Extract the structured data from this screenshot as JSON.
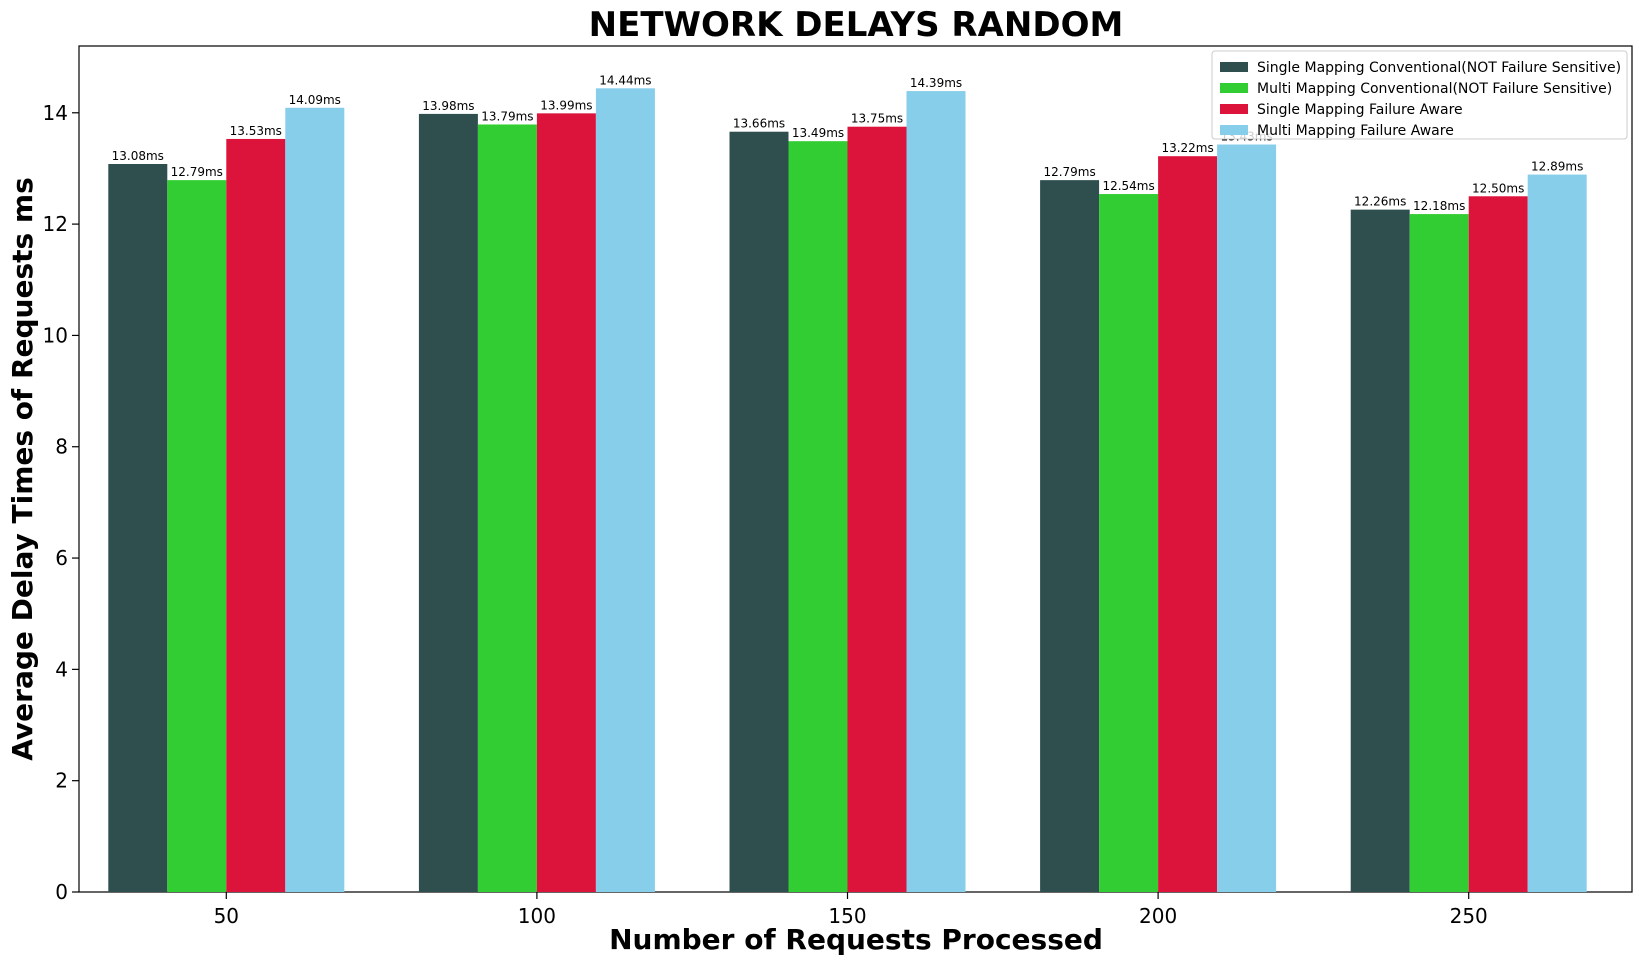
{
  "chart_data": {
    "type": "bar",
    "title": "NETWORK DELAYS RANDOM",
    "xlabel": "Number of Requests Processed",
    "ylabel": "Average Delay Times of Requests ms",
    "categories": [
      "50",
      "100",
      "150",
      "200",
      "250"
    ],
    "ylim": [
      0,
      15.2
    ],
    "yticks": [
      0,
      2,
      4,
      6,
      8,
      10,
      12,
      14
    ],
    "ytick_labels": [
      "0",
      "2",
      "4",
      "6",
      "8",
      "10",
      "12",
      "14"
    ],
    "grid": false,
    "legend_position": "top-right",
    "value_suffix": "ms",
    "series": [
      {
        "name": "Single Mapping Conventional(NOT Failure Sensitive)",
        "color": "#2f4f4f",
        "values": [
          13.08,
          13.98,
          13.66,
          12.79,
          12.26
        ],
        "labels": [
          "13.08ms",
          "13.98ms",
          "13.66ms",
          "12.79ms",
          "12.26ms"
        ]
      },
      {
        "name": "Multi Mapping Conventional(NOT Failure Sensitive)",
        "color": "#32cd32",
        "values": [
          12.79,
          13.79,
          13.49,
          12.54,
          12.18
        ],
        "labels": [
          "12.79ms",
          "13.79ms",
          "13.49ms",
          "12.54ms",
          "12.18ms"
        ]
      },
      {
        "name": "Single Mapping Failure Aware",
        "color": "#dc143c",
        "values": [
          13.53,
          13.99,
          13.75,
          13.22,
          12.5
        ],
        "labels": [
          "13.53ms",
          "13.99ms",
          "13.75ms",
          "13.22ms",
          "12.50ms"
        ]
      },
      {
        "name": "Multi Mapping Failure Aware",
        "color": "#87ceeb",
        "values": [
          14.09,
          14.44,
          14.39,
          13.43,
          12.89
        ],
        "labels": [
          "14.09ms",
          "14.44ms",
          "14.39ms",
          "13.43ms",
          "12.89ms"
        ]
      }
    ]
  }
}
